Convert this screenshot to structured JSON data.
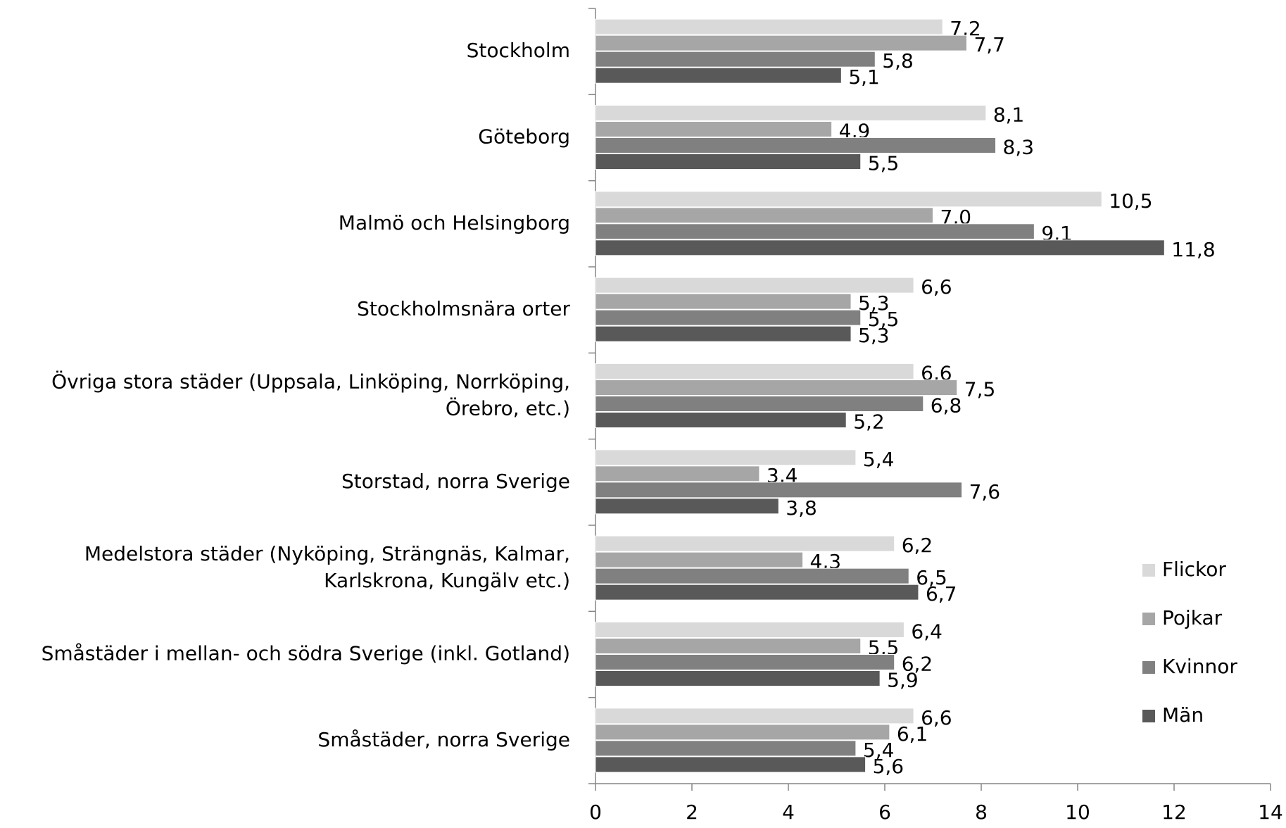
{
  "chart_data": {
    "type": "bar",
    "orientation": "horizontal",
    "categories": [
      "Stockholm",
      "Göteborg",
      "Malmö och Helsingborg",
      "Stockholmsnära orter",
      "Övriga stora städer (Uppsala, Linköping, Norrköping,\nÖrebro, etc.)",
      "Storstad, norra Sverige",
      "Medelstora städer (Nyköping, Strängnäs, Kalmar,\nKarlskrona, Kungälv etc.)",
      "Småstäder i mellan- och södra Sverige (inkl. Gotland)",
      "Småstäder, norra Sverige"
    ],
    "series": [
      {
        "name": "Flickor",
        "color": "#d9d9d9",
        "values": [
          7.2,
          8.1,
          10.5,
          6.6,
          6.6,
          5.4,
          6.2,
          6.4,
          6.6
        ],
        "value_labels": [
          "7,2",
          "8,1",
          "10,5",
          "6,6",
          "6,6",
          "5,4",
          "6,2",
          "6,4",
          "6,6"
        ]
      },
      {
        "name": "Pojkar",
        "color": "#a6a6a6",
        "values": [
          7.7,
          4.9,
          7.0,
          5.3,
          7.5,
          3.4,
          4.3,
          5.5,
          6.1
        ],
        "value_labels": [
          "7,7",
          "4,9",
          "7,0",
          "5,3",
          "7,5",
          "3,4",
          "4,3",
          "5,5",
          "6,1"
        ]
      },
      {
        "name": "Kvinnor",
        "color": "#808080",
        "values": [
          5.8,
          8.3,
          9.1,
          5.5,
          6.8,
          7.6,
          6.5,
          6.2,
          5.4
        ],
        "value_labels": [
          "5,8",
          "8,3",
          "9,1",
          "5,5",
          "6,8",
          "7,6",
          "6,5",
          "6,2",
          "5,4"
        ]
      },
      {
        "name": "Män",
        "color": "#595959",
        "values": [
          5.1,
          5.5,
          11.8,
          5.3,
          5.2,
          3.8,
          6.7,
          5.9,
          5.6
        ],
        "value_labels": [
          "5,1",
          "5,5",
          "11,8",
          "5,3",
          "5,2",
          "3,8",
          "6,7",
          "5,9",
          "5,6"
        ]
      }
    ],
    "xlim": [
      0,
      14
    ],
    "xticks": [
      0,
      2,
      4,
      6,
      8,
      10,
      12,
      14
    ],
    "legend": "right"
  }
}
